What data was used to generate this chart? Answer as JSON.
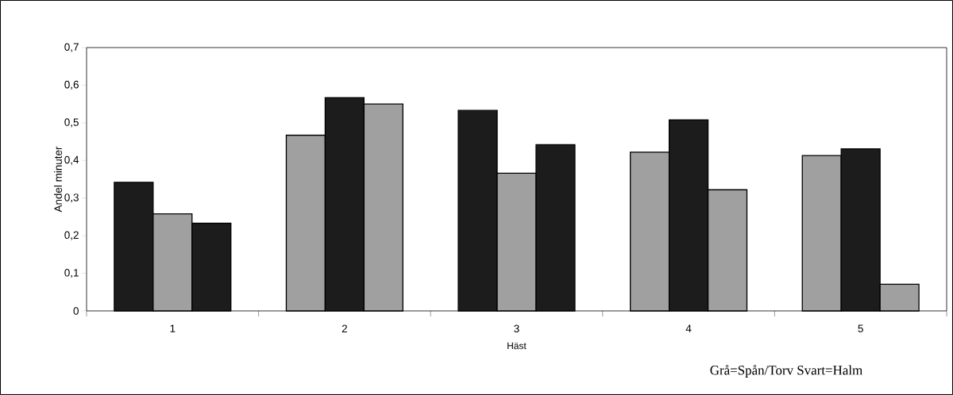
{
  "chart_data": {
    "type": "bar",
    "xlabel": "Häst",
    "ylabel": "Andel minuter",
    "categories": [
      "1",
      "2",
      "3",
      "4",
      "5"
    ],
    "series": [
      {
        "colors": [
          "#1c1c1c",
          "#a0a0a0",
          "#1c1c1c",
          "#a0a0a0",
          "#a0a0a0"
        ],
        "values": [
          0.342,
          0.467,
          0.533,
          0.422,
          0.413
        ]
      },
      {
        "colors": [
          "#a0a0a0",
          "#1c1c1c",
          "#a0a0a0",
          "#1c1c1c",
          "#1c1c1c"
        ],
        "values": [
          0.258,
          0.567,
          0.366,
          0.508,
          0.431
        ]
      },
      {
        "colors": [
          "#1c1c1c",
          "#a0a0a0",
          "#1c1c1c",
          "#a0a0a0",
          "#a0a0a0"
        ],
        "values": [
          0.233,
          0.55,
          0.442,
          0.322,
          0.071
        ]
      }
    ],
    "ylim": [
      0,
      0.7
    ],
    "yticks": [
      {
        "value": 0,
        "label": "0"
      },
      {
        "value": 0.1,
        "label": "0,1"
      },
      {
        "value": 0.2,
        "label": "0,2"
      },
      {
        "value": 0.3,
        "label": "0,3"
      },
      {
        "value": 0.4,
        "label": "0,4"
      },
      {
        "value": 0.5,
        "label": "0,5"
      },
      {
        "value": 0.6,
        "label": "0,6"
      },
      {
        "value": 0.7,
        "label": "0,7"
      }
    ],
    "annotations": [
      "Grå=Spån/Torv  Svart=Halm"
    ]
  }
}
